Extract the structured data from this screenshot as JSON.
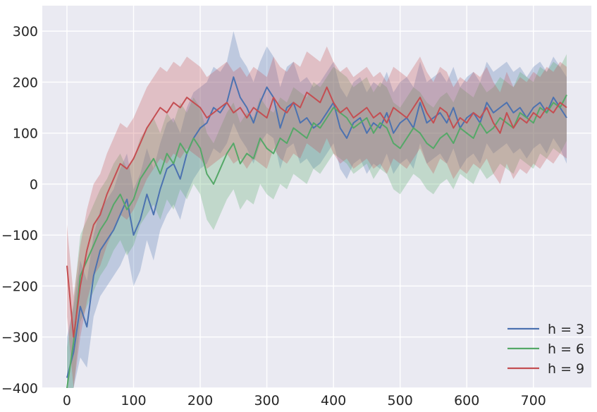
{
  "chart_data": {
    "type": "line",
    "title": "",
    "xlabel": "",
    "ylabel": "",
    "xlim": [
      -37,
      787
    ],
    "ylim": [
      -400,
      350
    ],
    "xticks": [
      0,
      100,
      200,
      300,
      400,
      500,
      600,
      700
    ],
    "yticks": [
      -400,
      -300,
      -200,
      -100,
      0,
      100,
      200,
      300
    ],
    "tick_labels_x": [
      "0",
      "100",
      "200",
      "300",
      "400",
      "500",
      "600",
      "700"
    ],
    "tick_labels_y": [
      "−400",
      "−300",
      "−200",
      "−100",
      "0",
      "100",
      "200",
      "300"
    ],
    "grid": true,
    "legend_position": "lower-right",
    "background": "#eaeaf2",
    "x": [
      0,
      10,
      20,
      30,
      40,
      50,
      60,
      70,
      80,
      90,
      100,
      110,
      120,
      130,
      140,
      150,
      160,
      170,
      180,
      190,
      200,
      210,
      220,
      230,
      240,
      250,
      260,
      270,
      280,
      290,
      300,
      310,
      320,
      330,
      340,
      350,
      360,
      370,
      380,
      390,
      400,
      410,
      420,
      430,
      440,
      450,
      460,
      470,
      480,
      490,
      500,
      510,
      520,
      530,
      540,
      550,
      560,
      570,
      580,
      590,
      600,
      610,
      620,
      630,
      640,
      650,
      660,
      670,
      680,
      690,
      700,
      710,
      720,
      730,
      740,
      750
    ],
    "series": [
      {
        "name": "h = 3",
        "color": "#4c72b0",
        "values": [
          -380,
          -330,
          -240,
          -280,
          -180,
          -130,
          -110,
          -90,
          -60,
          -30,
          -100,
          -70,
          -20,
          -60,
          -10,
          30,
          40,
          10,
          60,
          90,
          110,
          120,
          150,
          140,
          160,
          210,
          170,
          150,
          120,
          160,
          190,
          170,
          110,
          150,
          160,
          120,
          130,
          110,
          120,
          140,
          160,
          110,
          90,
          120,
          130,
          100,
          120,
          110,
          140,
          100,
          120,
          130,
          110,
          160,
          120,
          130,
          140,
          120,
          150,
          110,
          130,
          140,
          120,
          160,
          140,
          150,
          160,
          140,
          150,
          130,
          150,
          160,
          140,
          170,
          150,
          130
        ],
        "band_low": [
          -400,
          -400,
          -340,
          -360,
          -260,
          -220,
          -200,
          -180,
          -160,
          -130,
          -200,
          -170,
          -110,
          -150,
          -90,
          -60,
          -40,
          -70,
          -20,
          10,
          30,
          40,
          70,
          60,
          80,
          120,
          90,
          70,
          40,
          80,
          100,
          90,
          30,
          70,
          80,
          40,
          50,
          30,
          40,
          60,
          80,
          30,
          10,
          40,
          50,
          20,
          40,
          30,
          60,
          20,
          40,
          50,
          30,
          80,
          40,
          50,
          60,
          40,
          70,
          30,
          50,
          60,
          40,
          80,
          60,
          70,
          80,
          60,
          70,
          50,
          70,
          80,
          60,
          90,
          70,
          40
        ],
        "band_high": [
          -300,
          -240,
          -150,
          -190,
          -100,
          -50,
          -30,
          -10,
          30,
          60,
          -10,
          20,
          70,
          30,
          80,
          120,
          130,
          100,
          150,
          180,
          190,
          200,
          230,
          220,
          240,
          300,
          250,
          230,
          200,
          240,
          270,
          250,
          190,
          230,
          240,
          200,
          210,
          190,
          200,
          220,
          240,
          190,
          170,
          200,
          210,
          180,
          200,
          190,
          220,
          180,
          200,
          210,
          190,
          240,
          200,
          210,
          220,
          200,
          230,
          190,
          210,
          220,
          200,
          240,
          220,
          230,
          240,
          220,
          230,
          210,
          230,
          240,
          220,
          250,
          230,
          210
        ]
      },
      {
        "name": "h = 6",
        "color": "#55a868",
        "values": [
          -400,
          -310,
          -180,
          -150,
          -120,
          -90,
          -70,
          -40,
          -20,
          -50,
          -30,
          10,
          30,
          50,
          20,
          60,
          40,
          80,
          60,
          90,
          70,
          20,
          0,
          30,
          60,
          80,
          40,
          60,
          50,
          90,
          70,
          60,
          90,
          80,
          110,
          100,
          90,
          120,
          110,
          130,
          150,
          140,
          130,
          110,
          120,
          130,
          100,
          120,
          110,
          80,
          70,
          90,
          110,
          100,
          80,
          70,
          90,
          100,
          80,
          110,
          100,
          90,
          120,
          100,
          110,
          130,
          120,
          110,
          140,
          130,
          120,
          150,
          140,
          160,
          150,
          175
        ],
        "band_low": [
          -400,
          -400,
          -270,
          -240,
          -210,
          -180,
          -160,
          -130,
          -110,
          -140,
          -120,
          -80,
          -60,
          -40,
          -70,
          -30,
          -50,
          -10,
          -30,
          0,
          -20,
          -70,
          -90,
          -60,
          -30,
          -10,
          -50,
          -30,
          -40,
          0,
          -20,
          -30,
          0,
          -10,
          20,
          10,
          0,
          30,
          20,
          40,
          60,
          50,
          40,
          20,
          30,
          40,
          10,
          30,
          20,
          -10,
          -20,
          0,
          20,
          10,
          -10,
          -20,
          0,
          10,
          -10,
          20,
          10,
          0,
          30,
          10,
          20,
          40,
          30,
          20,
          50,
          40,
          30,
          60,
          50,
          70,
          60,
          85
        ],
        "band_high": [
          -320,
          -230,
          -100,
          -70,
          -40,
          -10,
          10,
          40,
          60,
          30,
          50,
          90,
          110,
          130,
          100,
          140,
          120,
          160,
          140,
          170,
          150,
          100,
          80,
          110,
          140,
          160,
          120,
          140,
          130,
          170,
          150,
          140,
          170,
          160,
          190,
          180,
          170,
          200,
          190,
          210,
          230,
          220,
          210,
          190,
          200,
          210,
          180,
          200,
          190,
          160,
          150,
          170,
          190,
          180,
          160,
          150,
          170,
          180,
          160,
          190,
          180,
          170,
          200,
          180,
          190,
          210,
          200,
          190,
          220,
          210,
          200,
          230,
          220,
          240,
          230,
          255
        ]
      },
      {
        "name": "h = 9",
        "color": "#c44e52",
        "values": [
          -160,
          -300,
          -200,
          -130,
          -80,
          -60,
          -20,
          10,
          40,
          30,
          50,
          80,
          110,
          130,
          150,
          140,
          160,
          150,
          170,
          160,
          150,
          130,
          140,
          150,
          160,
          140,
          150,
          130,
          150,
          140,
          130,
          170,
          150,
          140,
          160,
          150,
          180,
          170,
          160,
          190,
          160,
          140,
          150,
          130,
          140,
          150,
          130,
          140,
          120,
          150,
          140,
          130,
          150,
          170,
          140,
          120,
          150,
          140,
          110,
          130,
          120,
          140,
          130,
          150,
          120,
          100,
          140,
          110,
          130,
          120,
          140,
          130,
          150,
          140,
          160,
          150
        ],
        "band_low": [
          -260,
          -400,
          -300,
          -230,
          -180,
          -160,
          -120,
          -90,
          -60,
          -70,
          -50,
          -20,
          10,
          30,
          50,
          40,
          60,
          50,
          70,
          60,
          50,
          30,
          40,
          50,
          60,
          40,
          50,
          30,
          50,
          40,
          30,
          70,
          50,
          40,
          60,
          50,
          80,
          70,
          60,
          90,
          60,
          40,
          50,
          30,
          40,
          50,
          30,
          40,
          20,
          50,
          40,
          30,
          50,
          70,
          40,
          20,
          50,
          40,
          10,
          30,
          20,
          40,
          30,
          50,
          20,
          0,
          40,
          10,
          30,
          20,
          40,
          30,
          50,
          40,
          60,
          50
        ],
        "band_high": [
          -80,
          -220,
          -120,
          -50,
          0,
          20,
          60,
          90,
          120,
          110,
          130,
          160,
          190,
          210,
          230,
          220,
          240,
          230,
          250,
          240,
          230,
          210,
          220,
          230,
          240,
          220,
          230,
          210,
          230,
          220,
          210,
          250,
          230,
          220,
          240,
          230,
          260,
          250,
          240,
          270,
          240,
          220,
          230,
          210,
          220,
          230,
          210,
          220,
          200,
          230,
          220,
          210,
          230,
          250,
          220,
          200,
          230,
          220,
          190,
          210,
          200,
          220,
          210,
          230,
          200,
          180,
          220,
          190,
          210,
          200,
          220,
          210,
          230,
          220,
          240,
          230
        ]
      }
    ]
  }
}
